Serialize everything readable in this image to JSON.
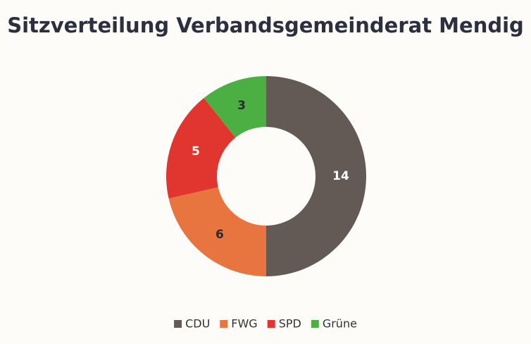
{
  "chart_data": {
    "type": "donut",
    "title": "Sitzverteilung Verbandsgemeinderat Mendig",
    "categories": [
      "CDU",
      "FWG",
      "SPD",
      "Grüne"
    ],
    "values": [
      14,
      6,
      5,
      3
    ],
    "colors": [
      "#635a56",
      "#e8743f",
      "#e0362f",
      "#4caf43"
    ],
    "legend": "bottom"
  }
}
